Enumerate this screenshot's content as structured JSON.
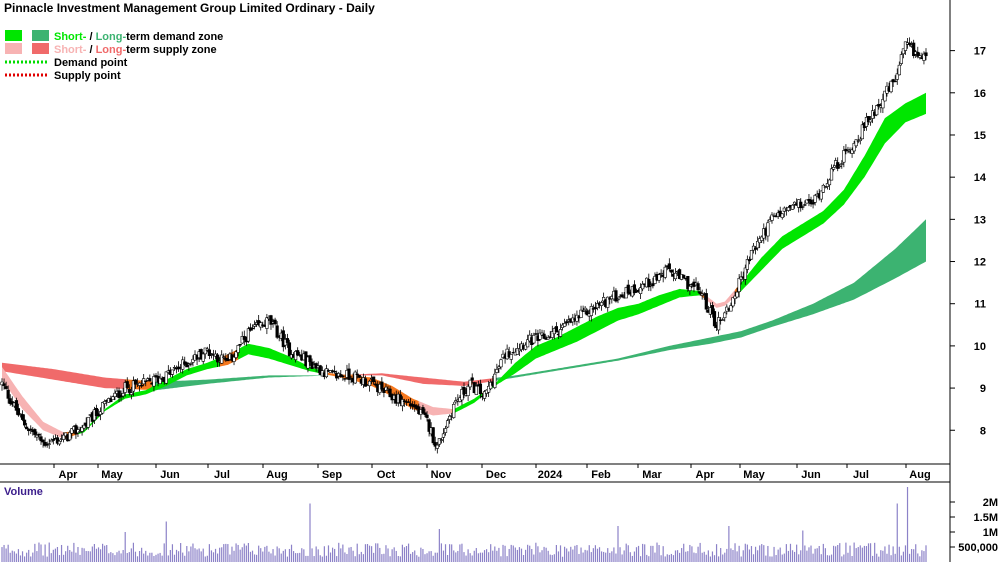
{
  "chart_data": [
    {
      "type": "candlestick",
      "title": "Pinnacle Investment Management Group Limited Ordinary - Daily",
      "legend": {
        "placement": "top-left",
        "entries": [
          {
            "swatches": [
              "#00e600",
              "#3cb371"
            ],
            "short": "Short-",
            "sep": " / ",
            "long": "Long-",
            "rest": "term demand zone",
            "short_color": "#00e600",
            "long_color": "#3cb371"
          },
          {
            "swatches": [
              "#f7b3b3",
              "#f06a6a"
            ],
            "short": "Short-",
            "sep": " / ",
            "long": "Long-",
            "rest": "term supply zone",
            "short_color": "#f7b3b3",
            "long_color": "#f06a6a"
          },
          {
            "line_color": "#00dd00",
            "label": "Demand point"
          },
          {
            "line_color": "#e00000",
            "label": "Supply point"
          }
        ]
      },
      "x_ticks": [
        "Apr",
        "May",
        "Jun",
        "Jul",
        "Aug",
        "Sep",
        "Oct",
        "Nov",
        "Dec",
        "2024",
        "Feb",
        "Mar",
        "Apr",
        "May",
        "Jun",
        "Jul",
        "Aug"
      ],
      "y_ticks": [
        8,
        9,
        10,
        11,
        12,
        13,
        14,
        15,
        16,
        17
      ],
      "ylim": [
        7.2,
        18.2
      ],
      "price_anchors": [
        [
          0,
          9.1
        ],
        [
          10,
          8.2
        ],
        [
          20,
          7.7
        ],
        [
          30,
          7.8
        ],
        [
          40,
          8.1
        ],
        [
          50,
          8.6
        ],
        [
          60,
          9.0
        ],
        [
          70,
          9.1
        ],
        [
          80,
          9.3
        ],
        [
          90,
          9.6
        ],
        [
          100,
          9.9
        ],
        [
          110,
          9.6
        ],
        [
          120,
          10.3
        ],
        [
          130,
          10.6
        ],
        [
          140,
          9.9
        ],
        [
          150,
          9.6
        ],
        [
          160,
          9.3
        ],
        [
          170,
          9.3
        ],
        [
          180,
          9.1
        ],
        [
          190,
          8.8
        ],
        [
          200,
          8.6
        ],
        [
          207,
          8.2
        ],
        [
          212,
          7.6
        ],
        [
          220,
          8.6
        ],
        [
          228,
          9.1
        ],
        [
          235,
          8.8
        ],
        [
          245,
          9.8
        ],
        [
          255,
          10.1
        ],
        [
          265,
          10.2
        ],
        [
          275,
          10.5
        ],
        [
          285,
          10.8
        ],
        [
          295,
          11.1
        ],
        [
          305,
          11.3
        ],
        [
          315,
          11.5
        ],
        [
          325,
          11.8
        ],
        [
          330,
          11.6
        ],
        [
          340,
          11.3
        ],
        [
          348,
          10.5
        ],
        [
          355,
          11.0
        ],
        [
          365,
          12.2
        ],
        [
          375,
          13.0
        ],
        [
          385,
          13.3
        ],
        [
          395,
          13.4
        ],
        [
          405,
          14.2
        ],
        [
          415,
          14.8
        ],
        [
          425,
          15.6
        ],
        [
          435,
          16.3
        ],
        [
          440,
          17.1
        ],
        [
          446,
          16.9
        ],
        [
          450,
          16.8
        ]
      ],
      "long_zone": [
        [
          0,
          9.6,
          9.4
        ],
        [
          25,
          9.45,
          9.2
        ],
        [
          50,
          9.25,
          9.0
        ],
        [
          75,
          9.15,
          8.95
        ],
        [
          100,
          9.2,
          9.1
        ],
        [
          130,
          9.3,
          9.25
        ],
        [
          160,
          9.3,
          9.3
        ],
        [
          185,
          9.35,
          9.3
        ],
        [
          205,
          9.25,
          9.1
        ],
        [
          225,
          9.15,
          9.05
        ],
        [
          250,
          9.3,
          9.25
        ],
        [
          275,
          9.5,
          9.45
        ],
        [
          300,
          9.7,
          9.65
        ],
        [
          325,
          10.0,
          9.9
        ],
        [
          345,
          10.2,
          10.05
        ],
        [
          360,
          10.35,
          10.2
        ],
        [
          375,
          10.6,
          10.45
        ],
        [
          395,
          11.0,
          10.75
        ],
        [
          415,
          11.5,
          11.1
        ],
        [
          435,
          12.3,
          11.6
        ],
        [
          450,
          13.0,
          12.0
        ]
      ],
      "short_zone": [
        [
          0,
          9.5,
          9.2
        ],
        [
          10,
          8.8,
          8.5
        ],
        [
          20,
          8.2,
          8.0
        ],
        [
          30,
          7.95,
          7.8
        ],
        [
          40,
          8.0,
          7.95
        ],
        [
          50,
          8.5,
          8.45
        ],
        [
          60,
          8.85,
          8.75
        ],
        [
          70,
          8.95,
          8.85
        ],
        [
          80,
          9.2,
          9.05
        ],
        [
          90,
          9.45,
          9.3
        ],
        [
          100,
          9.6,
          9.45
        ],
        [
          110,
          9.8,
          9.55
        ],
        [
          120,
          10.05,
          9.8
        ],
        [
          130,
          9.95,
          9.7
        ],
        [
          140,
          9.75,
          9.55
        ],
        [
          150,
          9.5,
          9.4
        ],
        [
          160,
          9.35,
          9.3
        ],
        [
          170,
          9.3,
          9.2
        ],
        [
          180,
          9.25,
          9.05
        ],
        [
          190,
          9.05,
          8.8
        ],
        [
          200,
          8.75,
          8.5
        ],
        [
          210,
          8.55,
          8.35
        ],
        [
          220,
          8.5,
          8.4
        ],
        [
          230,
          8.75,
          8.65
        ],
        [
          240,
          9.1,
          9.05
        ],
        [
          250,
          9.6,
          9.35
        ],
        [
          260,
          10.0,
          9.7
        ],
        [
          270,
          10.2,
          9.9
        ],
        [
          280,
          10.45,
          10.1
        ],
        [
          290,
          10.7,
          10.35
        ],
        [
          300,
          10.9,
          10.6
        ],
        [
          310,
          11.0,
          10.75
        ],
        [
          320,
          11.2,
          10.95
        ],
        [
          330,
          11.35,
          11.15
        ],
        [
          340,
          11.3,
          11.2
        ],
        [
          348,
          11.0,
          10.9
        ],
        [
          352,
          11.05,
          10.95
        ],
        [
          360,
          11.5,
          11.3
        ],
        [
          370,
          12.1,
          11.8
        ],
        [
          380,
          12.6,
          12.3
        ],
        [
          390,
          12.9,
          12.6
        ],
        [
          400,
          13.2,
          12.9
        ],
        [
          410,
          13.7,
          13.35
        ],
        [
          420,
          14.5,
          14.0
        ],
        [
          430,
          15.4,
          14.8
        ],
        [
          440,
          15.75,
          15.3
        ],
        [
          450,
          16.0,
          15.5
        ]
      ],
      "volume": {
        "label": "Volume",
        "y_ticks": [
          {
            "value": 500000,
            "label": "500,000"
          },
          {
            "value": 1000000,
            "label": "1M"
          },
          {
            "value": 1500000,
            "label": "1.5M"
          },
          {
            "value": 2000000,
            "label": "2M"
          }
        ],
        "ylim": [
          0,
          2600000
        ],
        "typical": 500000,
        "spikes": [
          [
            150,
            1950000
          ],
          [
            80,
            1350000
          ],
          [
            441,
            2500000
          ],
          [
            436,
            1950000
          ],
          [
            354,
            1200000
          ],
          [
            213,
            1100000
          ],
          [
            300,
            1200000
          ],
          [
            60,
            1000000
          ],
          [
            390,
            1050000
          ]
        ]
      },
      "colors": {
        "up": "#ffffff",
        "down": "#000000",
        "wick": "#000000",
        "demand_short": "#00e600",
        "demand_long": "#3cb371",
        "supply_short": "#f7b3b3",
        "supply_long": "#f06a6a",
        "transition": "#f5781e",
        "volume_bar": "#8c82c8",
        "volume_label": "#3c1e8c",
        "grid": "#000000"
      }
    }
  ]
}
